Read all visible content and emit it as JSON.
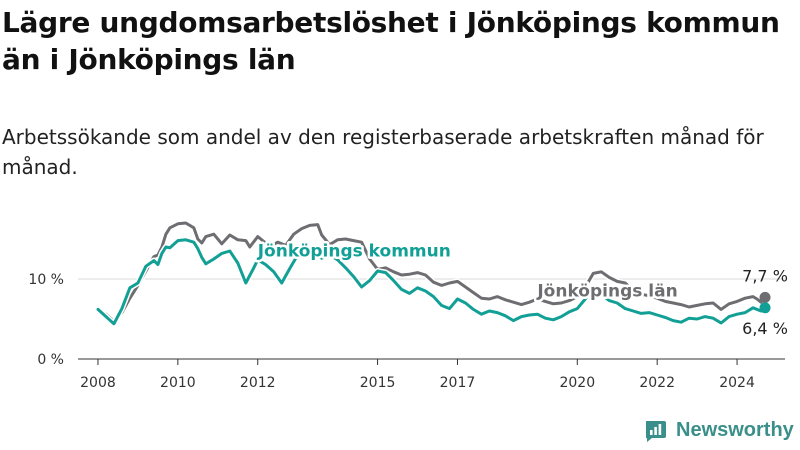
{
  "title": "Lägre ungdomsarbetslöshet i Jönköpings kommun än i Jönköpings län",
  "subtitle": "Arbetssökande som andel av den registerbaserade arbetskraften månad för månad.",
  "brand": "Newsworthy",
  "colors": {
    "lan": "#6e6e72",
    "kommun": "#12a096",
    "grid": "#d9d9d9",
    "axis": "#333333"
  },
  "chart_data": {
    "type": "line",
    "x_unit": "year",
    "xlim": [
      2007.5,
      2025.2
    ],
    "ylim": [
      0,
      18
    ],
    "yticks": [
      {
        "value": 0,
        "label": "0 %"
      },
      {
        "value": 10,
        "label": "10 %"
      }
    ],
    "xticks": [
      {
        "value": 2008,
        "label": "2008"
      },
      {
        "value": 2010,
        "label": "2010"
      },
      {
        "value": 2012,
        "label": "2012"
      },
      {
        "value": 2015,
        "label": "2015"
      },
      {
        "value": 2017,
        "label": "2017"
      },
      {
        "value": 2020,
        "label": "2020"
      },
      {
        "value": 2022,
        "label": "2022"
      },
      {
        "value": 2024,
        "label": "2024"
      }
    ],
    "series": [
      {
        "name": "Jönköpings län",
        "color_key": "lan",
        "end_label": "7,7 %",
        "points": [
          [
            2008.0,
            6.0
          ],
          [
            2008.2,
            5.6
          ],
          [
            2008.4,
            4.7
          ],
          [
            2008.6,
            5.8
          ],
          [
            2008.8,
            7.6
          ],
          [
            2009.0,
            9.2
          ],
          [
            2009.2,
            11.0
          ],
          [
            2009.4,
            12.8
          ],
          [
            2009.5,
            13.0
          ],
          [
            2009.6,
            14.0
          ],
          [
            2009.7,
            15.6
          ],
          [
            2009.8,
            16.4
          ],
          [
            2010.0,
            16.9
          ],
          [
            2010.2,
            17.0
          ],
          [
            2010.4,
            16.4
          ],
          [
            2010.5,
            15.0
          ],
          [
            2010.6,
            14.5
          ],
          [
            2010.7,
            15.3
          ],
          [
            2010.9,
            15.6
          ],
          [
            2011.1,
            14.4
          ],
          [
            2011.3,
            15.5
          ],
          [
            2011.5,
            14.9
          ],
          [
            2011.7,
            14.8
          ],
          [
            2011.8,
            14.0
          ],
          [
            2012.0,
            15.3
          ],
          [
            2012.2,
            14.5
          ],
          [
            2012.3,
            14.0
          ],
          [
            2012.5,
            14.6
          ],
          [
            2012.7,
            14.2
          ],
          [
            2012.9,
            15.6
          ],
          [
            2013.1,
            16.3
          ],
          [
            2013.3,
            16.7
          ],
          [
            2013.5,
            16.8
          ],
          [
            2013.6,
            15.5
          ],
          [
            2013.8,
            14.3
          ],
          [
            2014.0,
            14.9
          ],
          [
            2014.2,
            15.0
          ],
          [
            2014.4,
            14.8
          ],
          [
            2014.6,
            14.6
          ],
          [
            2014.8,
            12.5
          ],
          [
            2015.0,
            11.2
          ],
          [
            2015.2,
            11.4
          ],
          [
            2015.4,
            10.9
          ],
          [
            2015.6,
            10.5
          ],
          [
            2015.8,
            10.6
          ],
          [
            2016.0,
            10.8
          ],
          [
            2016.2,
            10.5
          ],
          [
            2016.4,
            9.6
          ],
          [
            2016.6,
            9.2
          ],
          [
            2016.8,
            9.5
          ],
          [
            2017.0,
            9.7
          ],
          [
            2017.2,
            9.0
          ],
          [
            2017.4,
            8.3
          ],
          [
            2017.6,
            7.6
          ],
          [
            2017.8,
            7.5
          ],
          [
            2018.0,
            7.8
          ],
          [
            2018.2,
            7.4
          ],
          [
            2018.4,
            7.1
          ],
          [
            2018.6,
            6.8
          ],
          [
            2018.8,
            7.1
          ],
          [
            2019.0,
            7.5
          ],
          [
            2019.2,
            7.2
          ],
          [
            2019.4,
            6.9
          ],
          [
            2019.6,
            7.0
          ],
          [
            2019.8,
            7.3
          ],
          [
            2020.0,
            7.8
          ],
          [
            2020.2,
            9.0
          ],
          [
            2020.4,
            10.7
          ],
          [
            2020.6,
            10.9
          ],
          [
            2020.8,
            10.2
          ],
          [
            2021.0,
            9.7
          ],
          [
            2021.2,
            9.5
          ],
          [
            2021.4,
            8.6
          ],
          [
            2021.6,
            8.1
          ],
          [
            2021.8,
            7.9
          ],
          [
            2022.0,
            7.6
          ],
          [
            2022.2,
            7.2
          ],
          [
            2022.4,
            7.0
          ],
          [
            2022.6,
            6.8
          ],
          [
            2022.8,
            6.5
          ],
          [
            2023.0,
            6.7
          ],
          [
            2023.2,
            6.9
          ],
          [
            2023.4,
            7.0
          ],
          [
            2023.6,
            6.2
          ],
          [
            2023.8,
            6.9
          ],
          [
            2024.0,
            7.2
          ],
          [
            2024.2,
            7.6
          ],
          [
            2024.4,
            7.8
          ],
          [
            2024.5,
            7.5
          ],
          [
            2024.6,
            7.1
          ],
          [
            2024.7,
            7.7
          ]
        ]
      },
      {
        "name": "Jönköpings kommun",
        "color_key": "kommun",
        "end_label": "6,4 %",
        "points": [
          [
            2008.0,
            6.2
          ],
          [
            2008.2,
            5.3
          ],
          [
            2008.4,
            4.4
          ],
          [
            2008.6,
            6.3
          ],
          [
            2008.8,
            8.9
          ],
          [
            2009.0,
            9.5
          ],
          [
            2009.2,
            11.6
          ],
          [
            2009.4,
            12.3
          ],
          [
            2009.5,
            11.8
          ],
          [
            2009.6,
            13.2
          ],
          [
            2009.7,
            14.0
          ],
          [
            2009.8,
            13.9
          ],
          [
            2010.0,
            14.8
          ],
          [
            2010.2,
            14.9
          ],
          [
            2010.4,
            14.6
          ],
          [
            2010.5,
            13.8
          ],
          [
            2010.6,
            12.7
          ],
          [
            2010.7,
            11.9
          ],
          [
            2010.9,
            12.5
          ],
          [
            2011.1,
            13.2
          ],
          [
            2011.3,
            13.5
          ],
          [
            2011.5,
            12.0
          ],
          [
            2011.7,
            9.5
          ],
          [
            2011.9,
            11.4
          ],
          [
            2012.0,
            12.4
          ],
          [
            2012.2,
            11.8
          ],
          [
            2012.4,
            10.9
          ],
          [
            2012.6,
            9.5
          ],
          [
            2012.8,
            11.3
          ],
          [
            2013.0,
            13.0
          ],
          [
            2013.3,
            13.5
          ],
          [
            2013.6,
            12.6
          ],
          [
            2013.8,
            13.0
          ],
          [
            2014.0,
            12.4
          ],
          [
            2014.2,
            11.4
          ],
          [
            2014.4,
            10.3
          ],
          [
            2014.6,
            9.0
          ],
          [
            2014.8,
            9.8
          ],
          [
            2015.0,
            11.0
          ],
          [
            2015.2,
            10.8
          ],
          [
            2015.4,
            9.8
          ],
          [
            2015.6,
            8.7
          ],
          [
            2015.8,
            8.2
          ],
          [
            2016.0,
            8.9
          ],
          [
            2016.2,
            8.5
          ],
          [
            2016.4,
            7.8
          ],
          [
            2016.6,
            6.7
          ],
          [
            2016.8,
            6.3
          ],
          [
            2017.0,
            7.5
          ],
          [
            2017.2,
            7.0
          ],
          [
            2017.4,
            6.2
          ],
          [
            2017.6,
            5.6
          ],
          [
            2017.8,
            6.0
          ],
          [
            2018.0,
            5.8
          ],
          [
            2018.2,
            5.4
          ],
          [
            2018.4,
            4.8
          ],
          [
            2018.6,
            5.3
          ],
          [
            2018.8,
            5.5
          ],
          [
            2019.0,
            5.6
          ],
          [
            2019.2,
            5.1
          ],
          [
            2019.4,
            4.9
          ],
          [
            2019.6,
            5.3
          ],
          [
            2019.8,
            5.9
          ],
          [
            2020.0,
            6.3
          ],
          [
            2020.2,
            7.5
          ],
          [
            2020.4,
            8.6
          ],
          [
            2020.6,
            8.1
          ],
          [
            2020.8,
            7.3
          ],
          [
            2021.0,
            7.0
          ],
          [
            2021.2,
            6.3
          ],
          [
            2021.4,
            6.0
          ],
          [
            2021.6,
            5.7
          ],
          [
            2021.8,
            5.8
          ],
          [
            2022.0,
            5.5
          ],
          [
            2022.2,
            5.2
          ],
          [
            2022.4,
            4.8
          ],
          [
            2022.6,
            4.6
          ],
          [
            2022.8,
            5.1
          ],
          [
            2023.0,
            5.0
          ],
          [
            2023.2,
            5.3
          ],
          [
            2023.4,
            5.1
          ],
          [
            2023.6,
            4.5
          ],
          [
            2023.8,
            5.3
          ],
          [
            2024.0,
            5.6
          ],
          [
            2024.2,
            5.8
          ],
          [
            2024.4,
            6.4
          ],
          [
            2024.6,
            6.0
          ],
          [
            2024.7,
            6.4
          ]
        ]
      }
    ],
    "annotations": [
      {
        "text": "Jönköpings kommun",
        "series": "Jönköpings kommun",
        "x": 2012.0,
        "y": 12.8
      },
      {
        "text": "Jönköpings län",
        "series": "Jönköpings län",
        "x": 2019.0,
        "y": 7.8
      }
    ]
  }
}
